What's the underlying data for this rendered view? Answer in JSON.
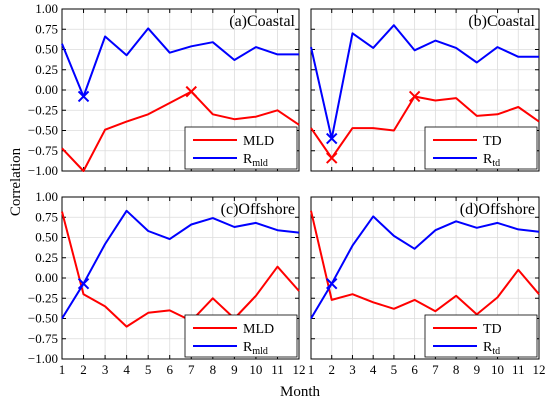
{
  "chart_data": {
    "type": "line",
    "x_title": "Month",
    "y_title": "Correlation",
    "xlim": [
      1,
      12
    ],
    "ylim": [
      -1.0,
      1.0
    ],
    "x_ticks": [
      "1",
      "2",
      "3",
      "4",
      "5",
      "6",
      "7",
      "8",
      "9",
      "10",
      "11",
      "12"
    ],
    "y_ticks": [
      "1.00",
      "0.75",
      "0.50",
      "0.25",
      "0.00",
      "−0.25",
      "−0.50",
      "−0.75",
      "−1.00"
    ],
    "grid": true,
    "legend_placement": "bottom-right",
    "colors": {
      "red": "#ff0000",
      "blue": "#0000ff",
      "grid": "#dcdcdc"
    },
    "panels": [
      {
        "title": "(a)Coastal",
        "legend": [
          {
            "text": "MLD",
            "sub": "",
            "color": "red"
          },
          {
            "text": "R",
            "sub": "mld",
            "color": "blue"
          }
        ],
        "series": [
          {
            "color": "red",
            "values": [
              -0.72,
              -1.0,
              -0.49,
              -0.39,
              -0.3,
              -0.16,
              -0.02,
              -0.3,
              -0.36,
              -0.33,
              -0.25,
              -0.43
            ]
          },
          {
            "color": "blue",
            "values": [
              0.57,
              -0.08,
              0.66,
              0.43,
              0.76,
              0.46,
              0.54,
              0.59,
              0.37,
              0.53,
              0.44,
              0.44
            ]
          }
        ],
        "markers": [
          {
            "month": 2,
            "value": -0.08,
            "color": "blue"
          },
          {
            "month": 7,
            "value": -0.02,
            "color": "red"
          }
        ]
      },
      {
        "title": "(b)Coastal",
        "legend": [
          {
            "text": "TD",
            "sub": "",
            "color": "red"
          },
          {
            "text": "R",
            "sub": "td",
            "color": "blue"
          }
        ],
        "series": [
          {
            "color": "red",
            "values": [
              -0.47,
              -0.84,
              -0.47,
              -0.47,
              -0.5,
              -0.08,
              -0.13,
              -0.1,
              -0.32,
              -0.3,
              -0.21,
              -0.39
            ]
          },
          {
            "color": "blue",
            "values": [
              0.53,
              -0.6,
              0.7,
              0.52,
              0.8,
              0.49,
              0.61,
              0.52,
              0.34,
              0.53,
              0.41,
              0.41
            ]
          }
        ],
        "markers": [
          {
            "month": 2,
            "value": -0.6,
            "color": "blue"
          },
          {
            "month": 2,
            "value": -0.84,
            "color": "red"
          },
          {
            "month": 6,
            "value": -0.08,
            "color": "red"
          }
        ]
      },
      {
        "title": "(c)Offshore",
        "legend": [
          {
            "text": "MLD",
            "sub": "",
            "color": "red"
          },
          {
            "text": "R",
            "sub": "mld",
            "color": "blue"
          }
        ],
        "series": [
          {
            "color": "red",
            "values": [
              0.82,
              -0.2,
              -0.35,
              -0.6,
              -0.43,
              -0.4,
              -0.53,
              -0.25,
              -0.5,
              -0.22,
              0.14,
              -0.16
            ]
          },
          {
            "color": "blue",
            "values": [
              -0.5,
              -0.07,
              0.42,
              0.83,
              0.58,
              0.48,
              0.66,
              0.74,
              0.63,
              0.68,
              0.59,
              0.56
            ]
          }
        ],
        "markers": [
          {
            "month": 2,
            "value": -0.07,
            "color": "blue"
          }
        ]
      },
      {
        "title": "(d)Offshore",
        "legend": [
          {
            "text": "TD",
            "sub": "",
            "color": "red"
          },
          {
            "text": "R",
            "sub": "td",
            "color": "blue"
          }
        ],
        "series": [
          {
            "color": "red",
            "values": [
              0.83,
              -0.27,
              -0.2,
              -0.3,
              -0.38,
              -0.27,
              -0.41,
              -0.22,
              -0.45,
              -0.24,
              0.1,
              -0.2
            ]
          },
          {
            "color": "blue",
            "values": [
              -0.5,
              -0.07,
              0.4,
              0.76,
              0.52,
              0.36,
              0.59,
              0.7,
              0.62,
              0.68,
              0.6,
              0.57
            ]
          }
        ],
        "markers": [
          {
            "month": 2,
            "value": -0.07,
            "color": "blue"
          }
        ]
      }
    ]
  }
}
